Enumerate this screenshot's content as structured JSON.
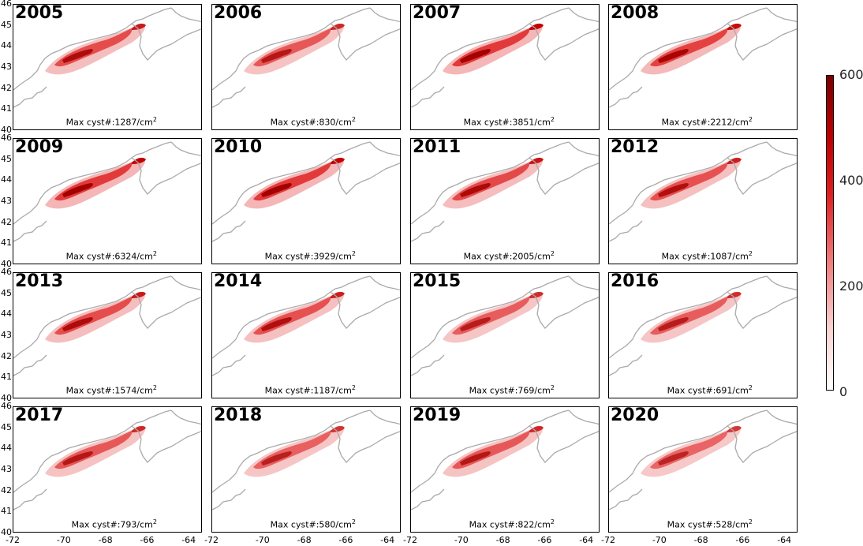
{
  "panels": [
    {
      "year": "2005",
      "max_label": "Max cyst#:1287/cm"
    },
    {
      "year": "2006",
      "max_label": "Max cyst#:830/cm"
    },
    {
      "year": "2007",
      "max_label": "Max cyst#:3851/cm"
    },
    {
      "year": "2008",
      "max_label": "Max cyst#:2212/cm"
    },
    {
      "year": "2009",
      "max_label": "Max cyst#:6324/cm"
    },
    {
      "year": "2010",
      "max_label": "Max cyst#:3929/cm"
    },
    {
      "year": "2011",
      "max_label": "Max cyst#:2005/cm"
    },
    {
      "year": "2012",
      "max_label": "Max cyst#:1087/cm"
    },
    {
      "year": "2013",
      "max_label": "Max cyst#:1574/cm"
    },
    {
      "year": "2014",
      "max_label": "Max cyst#:1187/cm"
    },
    {
      "year": "2015",
      "max_label": "Max cyst#:769/cm"
    },
    {
      "year": "2016",
      "max_label": "Max cyst#:691/cm"
    },
    {
      "year": "2017",
      "max_label": "Max cyst#:793/cm"
    },
    {
      "year": "2018",
      "max_label": "Max cyst#:580/cm"
    },
    {
      "year": "2019",
      "max_label": "Max cyst#:822/cm"
    },
    {
      "year": "2020",
      "max_label": "Max cyst#:528/cm"
    }
  ],
  "unit_exponent": "2",
  "y_ticks": [
    "46",
    "45",
    "44",
    "43",
    "42",
    "41",
    "40"
  ],
  "x_ticks": [
    "-72",
    "-70",
    "-68",
    "-66",
    "-64"
  ],
  "colorbar": {
    "labels": [
      "600",
      "400",
      "200",
      "0"
    ],
    "range": [
      0,
      600
    ],
    "colors": [
      "#ffffff",
      "#fbd0d0",
      "#f08080",
      "#e02020",
      "#c00000",
      "#7a0000"
    ]
  },
  "coast_color": "#aaaaaa",
  "intensity": [
    0.75,
    0.6,
    1.0,
    0.9,
    1.0,
    1.0,
    0.8,
    0.7,
    0.75,
    0.7,
    0.55,
    0.55,
    0.6,
    0.5,
    0.6,
    0.45
  ]
}
